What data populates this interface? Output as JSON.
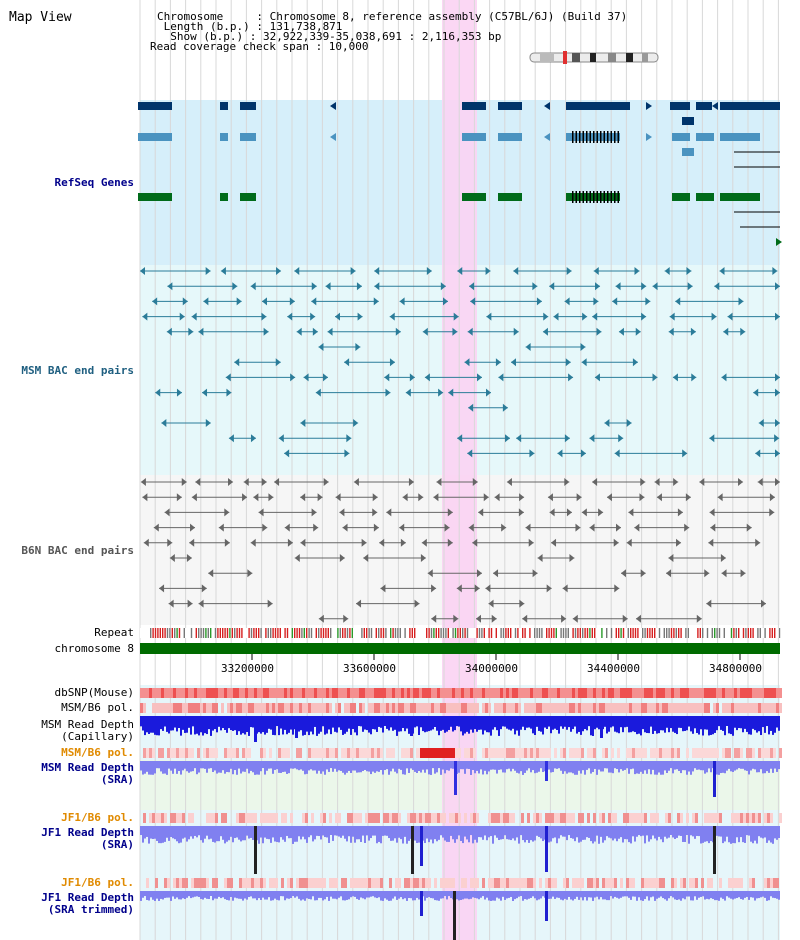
{
  "view_title": "Map View",
  "info": {
    "chromosome": "Chromosome     : Chromosome 8, reference assembly (C57BL/6J) (Build 37)",
    "length": " Length (b.p.) : 131,738,871",
    "show": "  Show (b.p.) : 32,922,339-35,038,691 : 2,116,353 bp",
    "span": "Read coverage check span : 10,000"
  },
  "tracks": {
    "refseq": "RefSeq Genes",
    "msm_bac": "MSM BAC end pairs",
    "b6n_bac": "B6N BAC end pairs",
    "repeat": "Repeat",
    "chromosome": "chromosome 8",
    "dbsnp": "dbSNP(Mouse)",
    "msm_pol1": "MSM/B6 pol.",
    "msm_cap_1": "MSM Read Depth",
    "msm_cap_2": "(Capillary)",
    "msm_pol2": "MSM/B6 pol.",
    "msm_sra_1": "MSM Read Depth",
    "msm_sra_2": "(SRA)",
    "jf1_pol1": "JF1/B6 pol.",
    "jf1_sra_1": "JF1 Read Depth",
    "jf1_sra_2": "(SRA)",
    "jf1_pol2": "JF1/B6 pol.",
    "jf1_trim_1": "JF1 Read Depth",
    "jf1_trim_2": "(SRA trimmed)"
  },
  "axis": {
    "ticks": [
      "33200000",
      "33600000",
      "34000000",
      "34400000",
      "34800000"
    ]
  },
  "colors": {
    "refseq_bg": "#d6effa",
    "msm_bg": "#e6f8fa",
    "highlight": "#fbd3f3",
    "gene_dark": "#00346b",
    "gene_mid": "#4a93c0",
    "gene_green": "#006b1a",
    "msm_line": "#2b7c99",
    "b6n_line": "#666666",
    "chromosome": "#006b00",
    "depth_blue": "#1a1adc",
    "depth_light": "#7070f0"
  }
}
